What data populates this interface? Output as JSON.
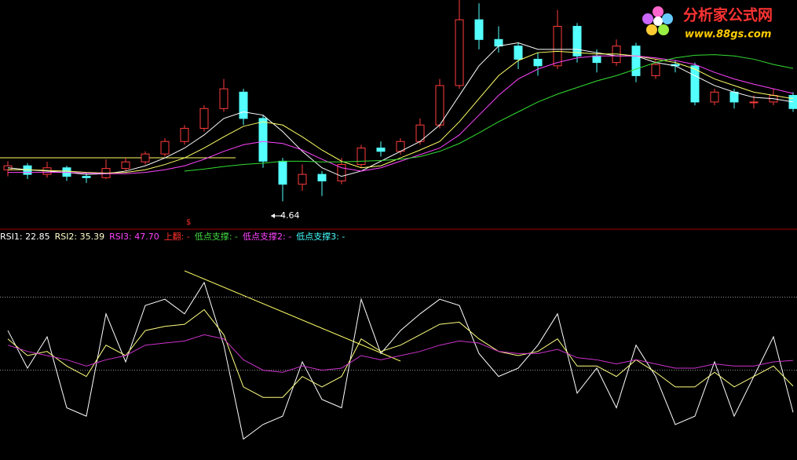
{
  "chart_data": [
    {
      "type": "candlestick",
      "ylim": [
        4.3,
        7.7
      ],
      "up_color": "#ff3c3c",
      "down_color": "#54ffff",
      "open": [
        5.12,
        5.18,
        5.05,
        5.15,
        5.02,
        5.0,
        5.14,
        5.24,
        5.36,
        5.55,
        5.75,
        6.05,
        6.3,
        5.9,
        5.25,
        4.9,
        5.05,
        4.95,
        5.2,
        5.45,
        5.4,
        5.55,
        5.8,
        6.4,
        7.4,
        7.1,
        7.0,
        6.8,
        6.7,
        7.3,
        6.85,
        6.75,
        7.0,
        6.55,
        6.72,
        6.7,
        6.15,
        6.3,
        6.15,
        6.15,
        6.25
      ],
      "close": [
        5.18,
        5.05,
        5.15,
        5.02,
        5.0,
        5.14,
        5.24,
        5.36,
        5.55,
        5.75,
        6.05,
        6.35,
        5.9,
        5.25,
        4.9,
        5.05,
        4.95,
        5.2,
        5.45,
        5.4,
        5.55,
        5.8,
        6.4,
        7.4,
        7.1,
        7.0,
        6.8,
        6.7,
        7.3,
        6.85,
        6.75,
        7.0,
        6.55,
        6.72,
        6.7,
        6.15,
        6.3,
        6.15,
        6.15,
        6.25,
        6.05
      ],
      "high": [
        5.25,
        5.22,
        5.24,
        5.18,
        5.08,
        5.28,
        5.3,
        5.4,
        5.6,
        5.8,
        6.1,
        6.5,
        6.35,
        5.95,
        5.3,
        5.2,
        5.1,
        5.3,
        5.5,
        5.55,
        5.6,
        5.9,
        6.5,
        7.7,
        7.65,
        7.3,
        7.05,
        6.9,
        7.55,
        7.35,
        6.95,
        7.1,
        7.05,
        6.8,
        6.78,
        6.75,
        6.35,
        6.35,
        6.25,
        6.35,
        6.3
      ],
      "low": [
        5.02,
        4.98,
        5.0,
        4.95,
        4.92,
        4.98,
        5.1,
        5.2,
        5.32,
        5.5,
        5.7,
        6.0,
        5.8,
        5.15,
        4.64,
        4.8,
        4.72,
        4.9,
        5.15,
        5.32,
        5.35,
        5.5,
        5.75,
        6.35,
        6.95,
        6.9,
        6.65,
        6.55,
        6.65,
        6.75,
        6.6,
        6.7,
        6.45,
        6.5,
        6.6,
        6.1,
        6.1,
        6.05,
        6.05,
        6.1,
        6.0
      ],
      "series": [
        {
          "color": "#ffffff",
          "values": [
            5.15,
            5.12,
            5.1,
            5.08,
            5.05,
            5.06,
            5.1,
            5.18,
            5.3,
            5.45,
            5.65,
            5.9,
            6.0,
            5.95,
            5.7,
            5.4,
            5.15,
            5.02,
            5.1,
            5.25,
            5.4,
            5.55,
            5.8,
            6.25,
            6.7,
            7.0,
            7.05,
            6.95,
            6.95,
            6.95,
            6.9,
            6.85,
            6.85,
            6.75,
            6.7,
            6.55,
            6.4,
            6.3,
            6.22,
            6.2,
            6.15
          ]
        },
        {
          "color": "#ffff66",
          "values": [
            5.12,
            5.12,
            5.11,
            5.1,
            5.08,
            5.07,
            5.08,
            5.12,
            5.2,
            5.3,
            5.45,
            5.62,
            5.78,
            5.85,
            5.8,
            5.62,
            5.42,
            5.25,
            5.15,
            5.18,
            5.3,
            5.42,
            5.55,
            5.85,
            6.2,
            6.55,
            6.78,
            6.9,
            6.92,
            6.9,
            6.88,
            6.88,
            6.85,
            6.8,
            6.75,
            6.65,
            6.5,
            6.4,
            6.3,
            6.25,
            6.2
          ]
        },
        {
          "color": "#ff44ff",
          "values": [
            5.08,
            5.08,
            5.08,
            5.08,
            5.07,
            5.06,
            5.06,
            5.08,
            5.12,
            5.18,
            5.28,
            5.4,
            5.5,
            5.55,
            5.52,
            5.42,
            5.28,
            5.15,
            5.1,
            5.15,
            5.25,
            5.35,
            5.45,
            5.65,
            5.95,
            6.25,
            6.5,
            6.65,
            6.75,
            6.82,
            6.85,
            6.85,
            6.85,
            6.82,
            6.78,
            6.72,
            6.6,
            6.5,
            6.42,
            6.35,
            6.28
          ]
        },
        {
          "color": "#33dd33",
          "values": [
            null,
            null,
            null,
            null,
            null,
            null,
            null,
            null,
            null,
            5.1,
            5.13,
            5.17,
            5.2,
            5.22,
            5.25,
            5.25,
            5.24,
            5.24,
            5.25,
            5.26,
            5.28,
            5.32,
            5.4,
            5.52,
            5.68,
            5.85,
            6.0,
            6.15,
            6.27,
            6.37,
            6.47,
            6.55,
            6.65,
            6.75,
            6.82,
            6.86,
            6.87,
            6.85,
            6.8,
            6.72,
            6.66
          ]
        }
      ],
      "annotations": [
        "4.64",
        "$"
      ]
    },
    {
      "type": "line",
      "ylim": [
        0,
        100
      ],
      "reference_lines": [
        78,
        43
      ],
      "indicator_labels": [
        {
          "text": "RSI1: 22.85",
          "color": "#ffffff"
        },
        {
          "text": "RSI2: 35.39",
          "color": "#ffffcc"
        },
        {
          "text": "RSI3: 47.70",
          "color": "#ff44ff"
        },
        {
          "text": "上翻: -",
          "color": "#ff3030"
        },
        {
          "text": "低点支撑: -",
          "color": "#44dd44"
        },
        {
          "text": "低点支撑2: -",
          "color": "#ff44ff"
        },
        {
          "text": "低点支撑3: -",
          "color": "#44ffff"
        }
      ],
      "series": [
        {
          "color": "#ffffff",
          "values": [
            62,
            44,
            59,
            25,
            21,
            70,
            47,
            74,
            77,
            70,
            85,
            55,
            10,
            17,
            21,
            47,
            29,
            25,
            77,
            51,
            62,
            70,
            77,
            74,
            51,
            40,
            44,
            55,
            70,
            32,
            44,
            25,
            55,
            40,
            17,
            21,
            47,
            21,
            40,
            59,
            22.85
          ]
        },
        {
          "color": "#ffff80",
          "values": [
            58,
            50,
            52,
            45,
            40,
            55,
            50,
            62,
            64,
            65,
            72,
            60,
            35,
            30,
            30,
            40,
            35,
            40,
            58,
            52,
            55,
            60,
            65,
            66,
            58,
            52,
            50,
            52,
            58,
            45,
            45,
            40,
            48,
            42,
            35,
            35,
            42,
            35,
            40,
            45,
            35.39
          ]
        },
        {
          "color": "#cc33cc",
          "values": [
            55,
            52,
            50,
            48,
            45,
            48,
            50,
            55,
            56,
            57,
            60,
            58,
            48,
            43,
            42,
            45,
            43,
            44,
            50,
            48,
            50,
            52,
            55,
            57,
            56,
            52,
            51,
            51,
            53,
            49,
            48,
            46,
            48,
            46,
            44,
            44,
            46,
            45,
            45,
            47,
            47.7
          ]
        }
      ]
    }
  ],
  "watermark": {
    "title": "分析家公式网",
    "url": "www.88gs.com"
  }
}
